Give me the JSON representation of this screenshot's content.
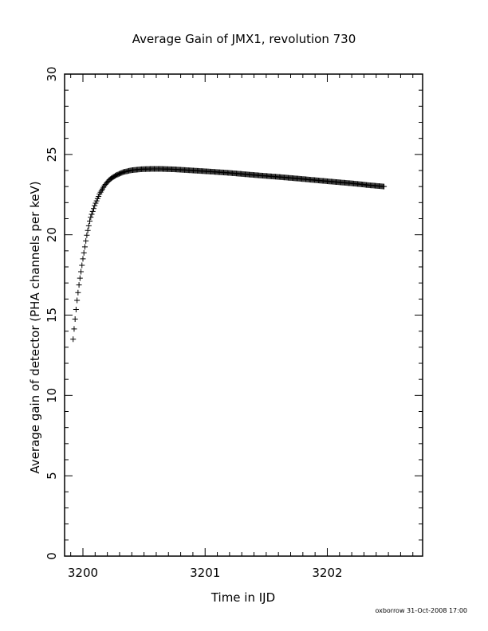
{
  "chart_data": {
    "type": "scatter",
    "title": "Average Gain of JMX1, revolution 730",
    "xlabel": "Time in IJD",
    "ylabel": "Average gain of detector (PHA channels per keV)",
    "xlim": [
      3199.85,
      3202.78
    ],
    "ylim": [
      0,
      30
    ],
    "x_ticks": [
      "3200",
      "3201",
      "3202"
    ],
    "y_ticks": [
      "0",
      "5",
      "10",
      "15",
      "20",
      "25",
      "30"
    ],
    "grid": false,
    "marker": "plus",
    "color": "#000000",
    "curve": {
      "x": [
        3199.92,
        3199.93,
        3199.95,
        3199.97,
        3200.0,
        3200.03,
        3200.06,
        3200.1,
        3200.14,
        3200.18,
        3200.22,
        3200.27,
        3200.33,
        3200.4,
        3200.48,
        3200.56,
        3200.64,
        3200.75,
        3200.9,
        3201.05,
        3201.2,
        3201.4,
        3201.6,
        3201.8,
        3202.0,
        3202.2,
        3202.35,
        3202.47
      ],
      "y": [
        13.5,
        14.3,
        15.8,
        17.0,
        18.5,
        19.9,
        21.0,
        21.9,
        22.6,
        23.1,
        23.45,
        23.7,
        23.9,
        24.02,
        24.08,
        24.1,
        24.1,
        24.07,
        24.0,
        23.93,
        23.85,
        23.72,
        23.6,
        23.47,
        23.33,
        23.2,
        23.08,
        23.0
      ]
    },
    "footer": "oxborrow 31-Oct-2008 17:00"
  }
}
